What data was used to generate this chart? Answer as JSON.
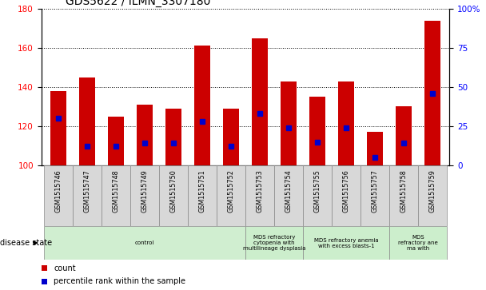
{
  "title": "GDS5622 / ILMN_3307180",
  "samples": [
    "GSM1515746",
    "GSM1515747",
    "GSM1515748",
    "GSM1515749",
    "GSM1515750",
    "GSM1515751",
    "GSM1515752",
    "GSM1515753",
    "GSM1515754",
    "GSM1515755",
    "GSM1515756",
    "GSM1515757",
    "GSM1515758",
    "GSM1515759"
  ],
  "counts": [
    138,
    145,
    125,
    131,
    129,
    161,
    129,
    165,
    143,
    135,
    143,
    117,
    130,
    174
  ],
  "percentile_ranks": [
    30,
    12,
    12,
    14,
    14,
    28,
    12,
    33,
    24,
    15,
    24,
    5,
    14,
    46
  ],
  "ylim_left": [
    100,
    180
  ],
  "ylim_right": [
    0,
    100
  ],
  "yticks_left": [
    100,
    120,
    140,
    160,
    180
  ],
  "yticks_right": [
    0,
    25,
    50,
    75,
    100
  ],
  "yticklabels_right": [
    "0",
    "25",
    "50",
    "75",
    "100%"
  ],
  "bar_color": "#cc0000",
  "dot_color": "#0000cc",
  "disease_groups": [
    {
      "label": "control",
      "start": 0,
      "end": 7,
      "color": "#d0eed0"
    },
    {
      "label": "MDS refractory\ncytopenia with\nmultilineage dysplasia",
      "start": 7,
      "end": 9,
      "color": "#cceecc"
    },
    {
      "label": "MDS refractory anemia\nwith excess blasts-1",
      "start": 9,
      "end": 12,
      "color": "#cceecc"
    },
    {
      "label": "MDS\nrefractory ane\nma with",
      "start": 12,
      "end": 14,
      "color": "#cceecc"
    }
  ],
  "disease_state_label": "disease state",
  "legend_count_label": "count",
  "legend_percentile_label": "percentile rank within the sample",
  "cell_color": "#d8d8d8"
}
